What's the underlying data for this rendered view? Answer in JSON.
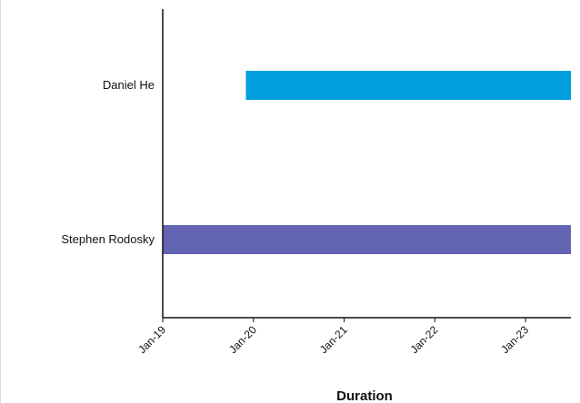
{
  "chart_data": {
    "type": "bar",
    "orientation": "horizontal",
    "categories": [
      "Daniel He",
      "Stephen Rodosky"
    ],
    "bars": [
      {
        "category": "Daniel He",
        "start": "2019-12",
        "end": "2023-07",
        "color": "#009fdf"
      },
      {
        "category": "Stephen Rodosky",
        "start": "2019-01",
        "end": "2023-07",
        "color": "#6464b4"
      }
    ],
    "xlabel": "Duration",
    "ylabel": "",
    "x_ticks": [
      {
        "value": "2019-01",
        "label": "Jan-19"
      },
      {
        "value": "2020-01",
        "label": "Jan-20"
      },
      {
        "value": "2021-01",
        "label": "Jan-21"
      },
      {
        "value": "2022-01",
        "label": "Jan-22"
      },
      {
        "value": "2023-01",
        "label": "Jan-23"
      }
    ],
    "xlim": [
      "2019-01",
      "2023-07"
    ],
    "grid": false,
    "legend": "none"
  }
}
